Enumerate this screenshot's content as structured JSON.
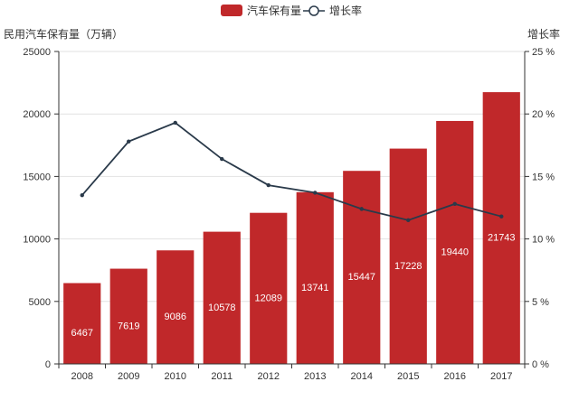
{
  "chart_data": {
    "type": "bar",
    "categories": [
      "2008",
      "2009",
      "2010",
      "2011",
      "2012",
      "2013",
      "2014",
      "2015",
      "2016",
      "2017"
    ],
    "series": [
      {
        "name": "汽车保有量",
        "type": "bar",
        "axis": "left",
        "color": "#c0282a",
        "values": [
          6467,
          7619,
          9086,
          10578,
          12089,
          13741,
          15447,
          17228,
          19440,
          21743
        ]
      },
      {
        "name": "增长率",
        "type": "line",
        "axis": "right",
        "color": "#2a3a4a",
        "values": [
          13.5,
          17.8,
          19.3,
          16.4,
          14.3,
          13.7,
          12.4,
          11.5,
          12.8,
          11.8
        ]
      }
    ],
    "ylabel": "民用汽车保有量（万辆）",
    "y2label": "增长率",
    "ylim": [
      0,
      25000
    ],
    "y2lim": [
      0,
      25
    ],
    "yticks": [
      "0",
      "5000",
      "10000",
      "15000",
      "20000",
      "25000"
    ],
    "y2ticks": [
      "0 %",
      "5 %",
      "10 %",
      "15 %",
      "20 %",
      "25 %"
    ],
    "grid": true,
    "legend": "top-center"
  }
}
